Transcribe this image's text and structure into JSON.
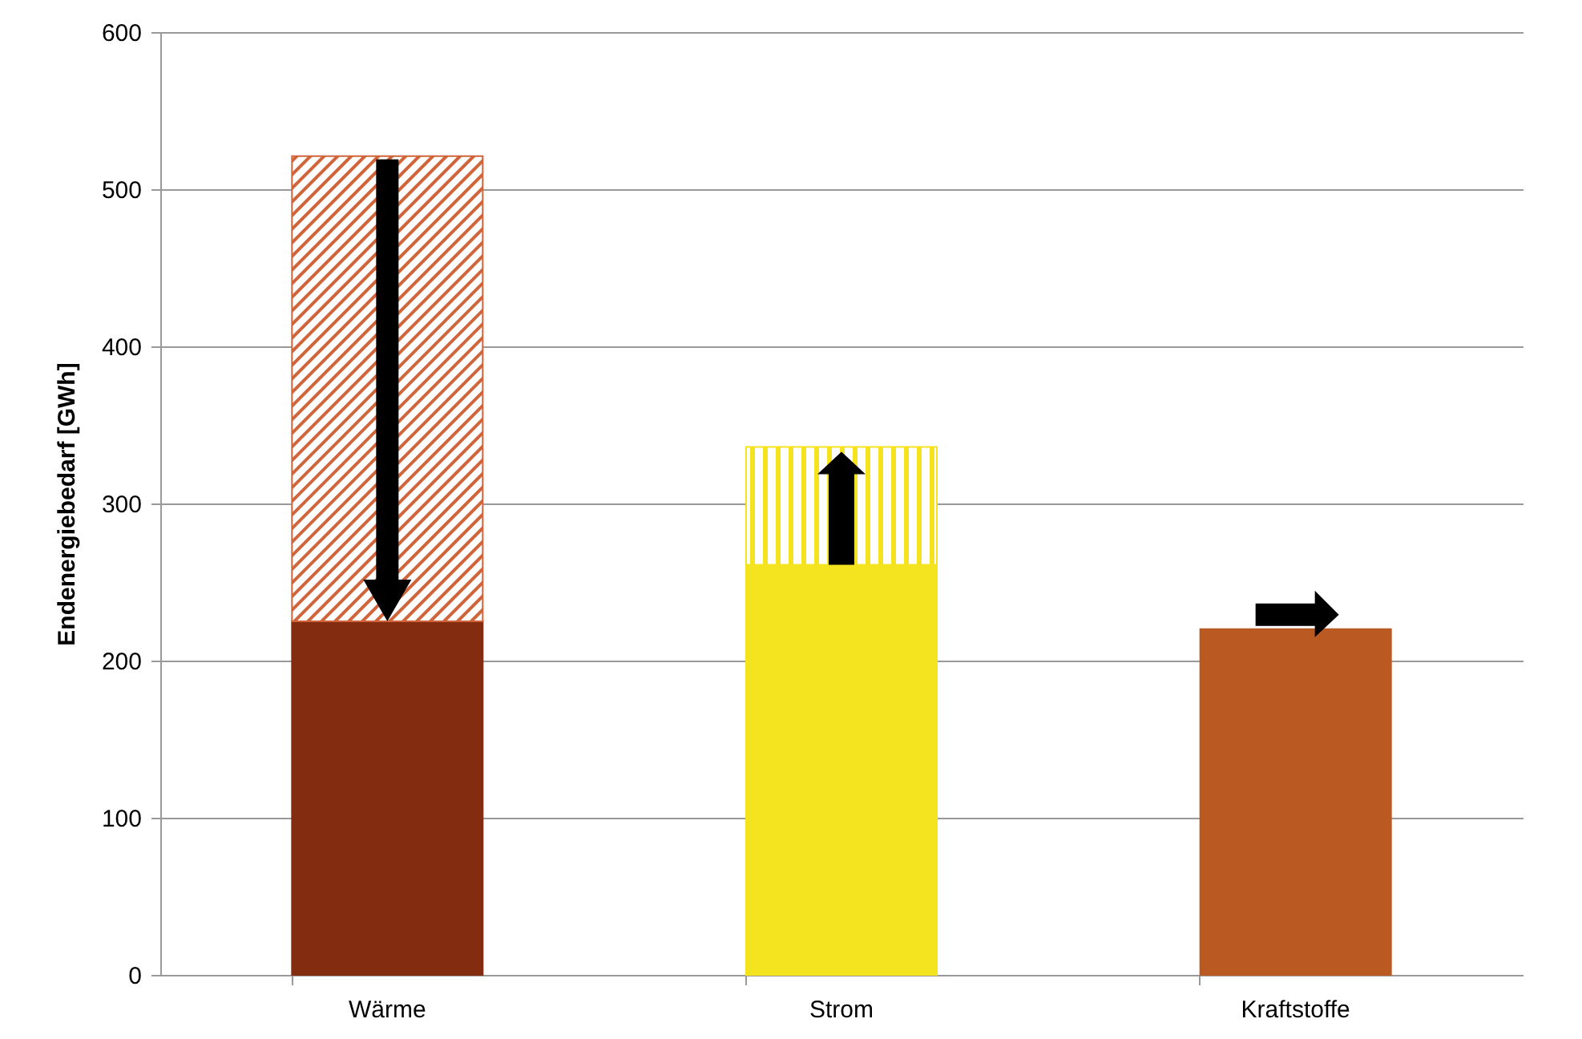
{
  "chart_data": {
    "type": "bar",
    "stacked": true,
    "ylabel": "Endenergiebedarf [GWh]",
    "categories": [
      "Wärme",
      "Strom",
      "Kraftstoffe"
    ],
    "series": [
      {
        "colors": [
          "#832c10",
          "#f3e41f",
          "#bb5922"
        ],
        "values": [
          225,
          261,
          220
        ]
      },
      {
        "colors": [
          "#d0643a",
          "#f5e31f",
          null
        ],
        "values": [
          296,
          75,
          null
        ]
      }
    ],
    "ylim": [
      0,
      600
    ],
    "yticks": [
      0,
      100,
      200,
      300,
      400,
      500,
      600
    ],
    "grid": "y"
  }
}
